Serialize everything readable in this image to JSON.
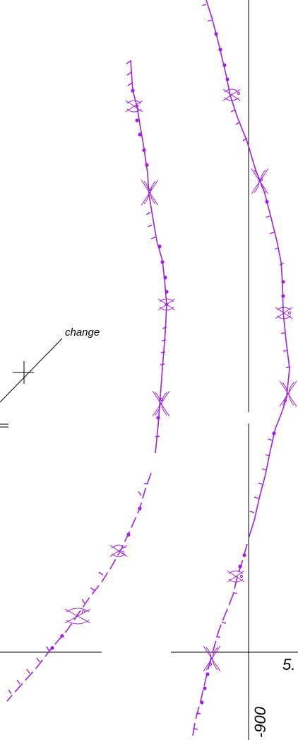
{
  "drawing": {
    "annotation": "change",
    "coord_x_label": "5.",
    "coord_y_label": "-900",
    "colors": {
      "route": "#a020e0",
      "reference": "#000000",
      "background": "#ffffff"
    }
  }
}
